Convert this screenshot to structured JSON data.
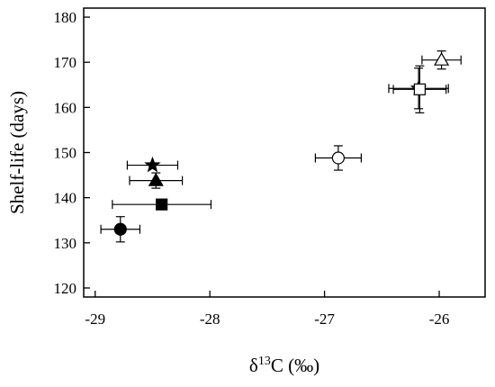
{
  "chart_data": {
    "type": "scatter",
    "title": "",
    "xlabel": {
      "prefix": "δ",
      "sup": "13",
      "suffix": "C (‰)"
    },
    "ylabel": "Shelf-life (days)",
    "xlim": [
      -29.1,
      -25.6
    ],
    "ylim": [
      118,
      182
    ],
    "xticks": [
      -29,
      -28,
      -27,
      -26
    ],
    "xtick_labels": [
      "-29",
      "-28",
      "-27",
      "-26"
    ],
    "yticks": [
      120,
      130,
      140,
      150,
      160,
      170,
      180
    ],
    "ytick_labels": [
      "120",
      "130",
      "140",
      "150",
      "160",
      "170",
      "180"
    ],
    "grid": false,
    "legend": false,
    "series": [
      {
        "marker": "circle",
        "fill": "filled",
        "x": -28.78,
        "y": 133.0,
        "xerr": 0.17,
        "yerr": 2.8
      },
      {
        "marker": "square",
        "fill": "filled",
        "x": -28.42,
        "y": 138.5,
        "xerr": 0.43,
        "yerr": 0
      },
      {
        "marker": "triangle",
        "fill": "filled",
        "x": -28.47,
        "y": 143.8,
        "xerr": 0.23,
        "yerr": 1.7
      },
      {
        "marker": "star",
        "fill": "filled",
        "x": -28.5,
        "y": 147.2,
        "xerr": 0.22,
        "yerr": 0
      },
      {
        "marker": "circle",
        "fill": "open",
        "x": -26.88,
        "y": 148.8,
        "xerr": 0.2,
        "yerr": 2.7
      },
      {
        "marker": "star",
        "fill": "open",
        "x": -26.18,
        "y": 164.2,
        "xerr": 0.26,
        "yerr": 4.5
      },
      {
        "marker": "square",
        "fill": "open",
        "x": -26.17,
        "y": 164.0,
        "xerr": 0.23,
        "yerr": 5.2
      },
      {
        "marker": "triangle",
        "fill": "open",
        "x": -25.98,
        "y": 170.5,
        "xerr": 0.17,
        "yerr": 2.0
      }
    ]
  }
}
